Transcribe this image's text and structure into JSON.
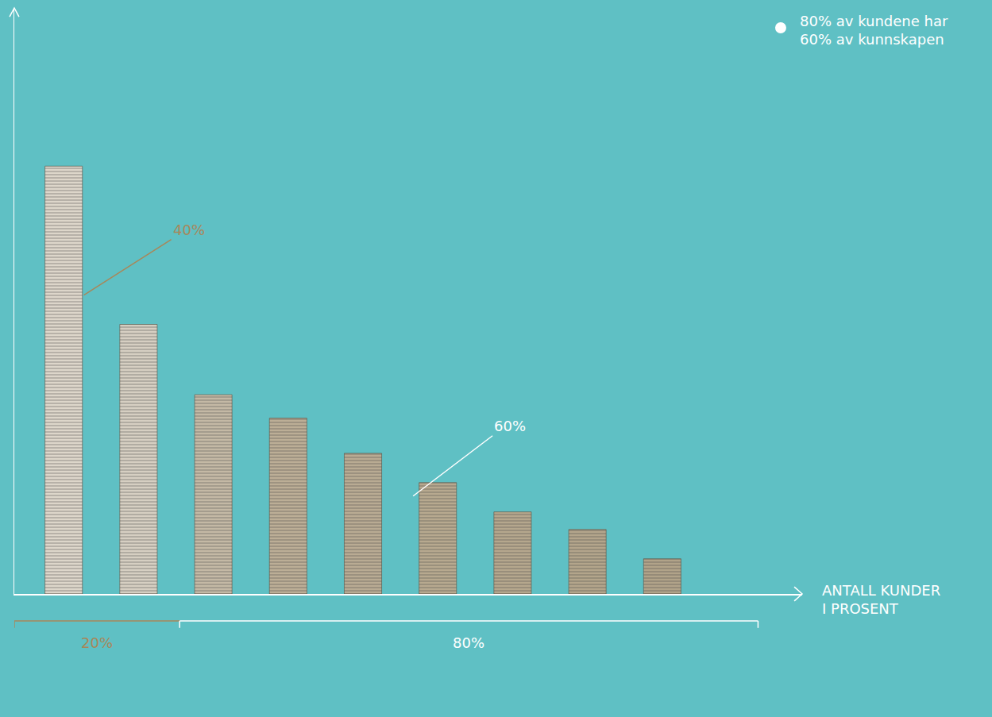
{
  "chart_data": {
    "type": "bar",
    "categories": [
      null,
      null,
      null,
      null,
      null,
      null,
      null,
      null,
      null
    ],
    "values": [
      73,
      46,
      34,
      30,
      24,
      19,
      14,
      11,
      6
    ],
    "colors": [
      "#ddd6ca",
      "#d6cfc2",
      "#c4b9a5",
      "#bcae96",
      "#b9ab93",
      "#b7a98f",
      "#b5a78d",
      "#b3a58b",
      "#b1a389"
    ],
    "ylim": [
      0,
      100
    ],
    "grid": false,
    "tick_labels": false,
    "x_label": "ANTALL KUNDER\nI PROSENT",
    "annotations": [
      "40%",
      "60%"
    ],
    "brackets": [
      {
        "label": "20%"
      },
      {
        "label": "80%"
      }
    ],
    "note": "80% av kundene har\n60% av kunnskapen"
  }
}
